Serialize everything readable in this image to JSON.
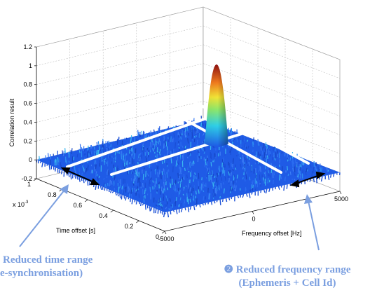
{
  "chart_data": {
    "type": "surface",
    "title": "",
    "zlabel": "Correlation result",
    "xlabel": "Frequency offset [Hz]",
    "ylabel": "Time offset [s]",
    "y_multiplier": "x 10",
    "y_multiplier_exp": "-3",
    "z_ticks": [
      "-0.2",
      "0",
      "0.2",
      "0.4",
      "0.6",
      "0.8",
      "1",
      "1.2"
    ],
    "x_ticks": [
      "-5000",
      "0",
      "5000"
    ],
    "y_ticks": [
      "0",
      "0.2",
      "0.4",
      "0.6",
      "0.8",
      "1"
    ],
    "xlim": [
      -5000,
      5000
    ],
    "ylim": [
      0,
      1
    ],
    "zlim": [
      -0.2,
      1.2
    ],
    "noise_floor": 0.0,
    "peak": {
      "frequency_offset": 0,
      "time_offset": 0.5,
      "value": 1.05
    },
    "grid": true,
    "colormap": "jet"
  },
  "annotations": {
    "time_range_line1": "Reduced time range",
    "time_range_line2": "e-synchronisation)",
    "freq_range_line1": "❷ Reduced frequency range",
    "freq_range_line2": "(Ephemeris + Cell Id)"
  },
  "colors": {
    "annotation_text": "#7b9fe0",
    "annotation_arrow": "#7b9fe0",
    "surface_floor": "#1f5be6",
    "grid": "#b0b0b0"
  }
}
